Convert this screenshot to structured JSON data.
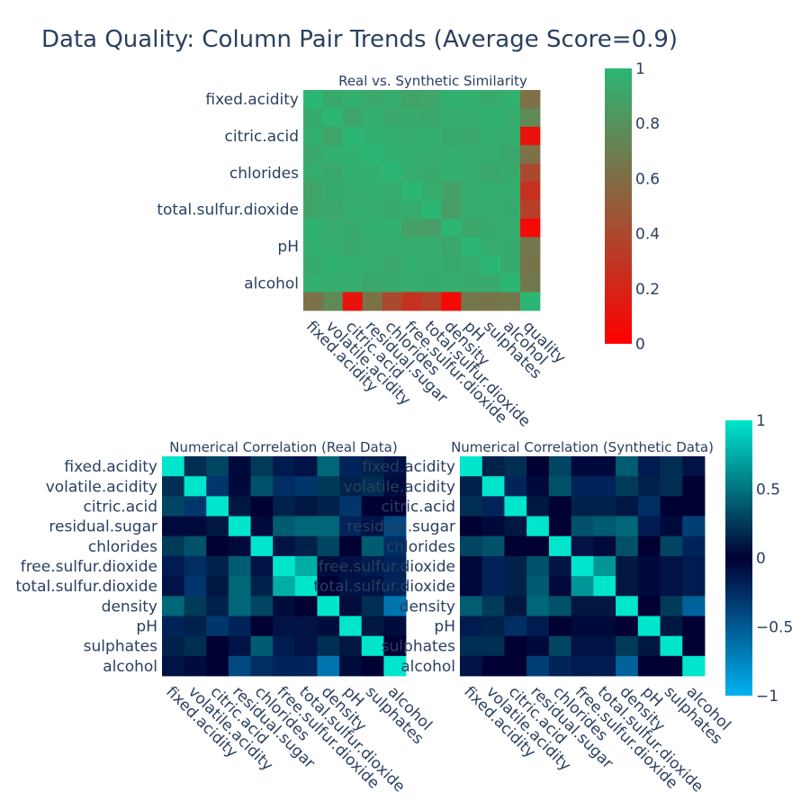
{
  "figure": {
    "title": "Data Quality: Column Pair Trends (Average Score=0.9)"
  },
  "chart_data": [
    {
      "type": "heatmap",
      "title": "Real vs. Synthetic Similarity",
      "colorscale": [
        "#ff0000",
        "#2bb673"
      ],
      "zlim": [
        0,
        1
      ],
      "colorbar_ticks": [
        "0",
        "0.2",
        "0.4",
        "0.6",
        "0.8",
        "1"
      ],
      "x": [
        "fixed.acidity",
        "volatile.acidity",
        "citric.acid",
        "residual.sugar",
        "chlorides",
        "free.sulfur.dioxide",
        "total.sulfur.dioxide",
        "density",
        "pH",
        "sulphates",
        "alcohol",
        "quality"
      ],
      "y": [
        "fixed.acidity",
        "volatile.acidity",
        "citric.acid",
        "residual.sugar",
        "chlorides",
        "free.sulfur.dioxide",
        "total.sulfur.dioxide",
        "density",
        "pH",
        "sulphates",
        "alcohol",
        "quality"
      ],
      "y_tick_labels": [
        "fixed.acidity",
        "citric.acid",
        "chlorides",
        "total.sulfur.dioxide",
        "pH",
        "alcohol"
      ],
      "z": [
        [
          1,
          0.94,
          0.96,
          0.93,
          0.95,
          0.9,
          0.91,
          0.97,
          0.96,
          0.94,
          0.96,
          0.62
        ],
        [
          0.94,
          1,
          0.9,
          0.96,
          0.93,
          0.94,
          0.92,
          0.95,
          0.95,
          0.97,
          0.95,
          0.75
        ],
        [
          0.96,
          0.9,
          1,
          0.97,
          0.96,
          0.95,
          0.96,
          0.94,
          0.93,
          0.96,
          0.95,
          0.1
        ],
        [
          0.93,
          0.96,
          0.97,
          1,
          0.97,
          0.96,
          0.95,
          0.96,
          0.95,
          0.95,
          0.92,
          0.62
        ],
        [
          0.95,
          0.93,
          0.96,
          0.97,
          1,
          0.95,
          0.94,
          0.96,
          0.95,
          0.92,
          0.94,
          0.4
        ],
        [
          0.9,
          0.94,
          0.95,
          0.96,
          0.95,
          1,
          0.95,
          0.88,
          0.95,
          0.96,
          0.95,
          0.27
        ],
        [
          0.91,
          0.92,
          0.96,
          0.95,
          0.94,
          0.95,
          1,
          0.87,
          0.95,
          0.95,
          0.94,
          0.35
        ],
        [
          0.97,
          0.95,
          0.94,
          0.96,
          0.96,
          0.88,
          0.87,
          1,
          0.92,
          0.94,
          0.95,
          0.05
        ],
        [
          0.96,
          0.95,
          0.93,
          0.95,
          0.95,
          0.95,
          0.95,
          0.92,
          1,
          0.95,
          0.94,
          0.65
        ],
        [
          0.94,
          0.97,
          0.96,
          0.95,
          0.92,
          0.96,
          0.95,
          0.94,
          0.95,
          1,
          0.94,
          0.64
        ],
        [
          0.96,
          0.95,
          0.95,
          0.92,
          0.94,
          0.95,
          0.94,
          0.95,
          0.94,
          0.94,
          1,
          0.66
        ],
        [
          0.62,
          0.75,
          0.1,
          0.62,
          0.4,
          0.27,
          0.35,
          0.05,
          0.65,
          0.64,
          0.66,
          1
        ]
      ]
    },
    {
      "type": "heatmap",
      "title": "Numerical Correlation (Real Data)",
      "colorscale": [
        "#00b3f0",
        "#000033",
        "#00e6cc"
      ],
      "zlim": [
        -1,
        1
      ],
      "x": [
        "fixed.acidity",
        "volatile.acidity",
        "citric.acid",
        "residual.sugar",
        "chlorides",
        "free.sulfur.dioxide",
        "total.sulfur.dioxide",
        "density",
        "pH",
        "sulphates",
        "alcohol"
      ],
      "y": [
        "fixed.acidity",
        "volatile.acidity",
        "citric.acid",
        "residual.sugar",
        "chlorides",
        "free.sulfur.dioxide",
        "total.sulfur.dioxide",
        "density",
        "pH",
        "sulphates",
        "alcohol"
      ],
      "z": [
        [
          1,
          0.2,
          0.3,
          -0.05,
          0.25,
          -0.15,
          -0.1,
          0.45,
          -0.2,
          0.15,
          -0.1
        ],
        [
          0.2,
          1,
          -0.3,
          -0.05,
          0.35,
          -0.25,
          -0.3,
          0.25,
          0.15,
          0.2,
          0.05
        ],
        [
          0.3,
          -0.3,
          1,
          0.1,
          0.0,
          0.15,
          0.1,
          0.15,
          -0.3,
          0.0,
          0.0
        ],
        [
          -0.05,
          -0.05,
          0.1,
          1,
          -0.05,
          0.4,
          0.45,
          0.45,
          -0.2,
          -0.1,
          -0.4
        ],
        [
          0.25,
          0.35,
          0.0,
          -0.05,
          1,
          -0.1,
          0.15,
          0.3,
          0.0,
          0.4,
          -0.25
        ],
        [
          -0.15,
          -0.25,
          0.15,
          0.4,
          -0.1,
          1,
          0.75,
          0.05,
          -0.1,
          -0.15,
          -0.2
        ],
        [
          -0.1,
          -0.3,
          0.1,
          0.45,
          0.15,
          0.75,
          1,
          0.0,
          -0.1,
          -0.1,
          -0.2
        ],
        [
          0.45,
          0.25,
          0.15,
          0.45,
          0.3,
          0.05,
          0.0,
          1,
          0.05,
          0.2,
          -0.65
        ],
        [
          -0.2,
          0.15,
          -0.3,
          -0.2,
          0.0,
          -0.1,
          -0.1,
          0.05,
          1,
          0.1,
          0.05
        ],
        [
          0.15,
          0.2,
          0.0,
          -0.1,
          0.4,
          -0.15,
          -0.1,
          0.2,
          0.1,
          1,
          0.0
        ],
        [
          -0.1,
          0.05,
          0.0,
          -0.4,
          -0.25,
          -0.2,
          -0.2,
          -0.65,
          0.05,
          0.0,
          1
        ]
      ]
    },
    {
      "type": "heatmap",
      "title": "Numerical Correlation (Synthetic Data)",
      "colorscale": [
        "#00b3f0",
        "#000033",
        "#00e6cc"
      ],
      "zlim": [
        -1,
        1
      ],
      "colorbar_ticks": [
        "−1",
        "−0.5",
        "0",
        "0.5",
        "1"
      ],
      "x": [
        "fixed.acidity",
        "volatile.acidity",
        "citric.acid",
        "residual.sugar",
        "chlorides",
        "free.sulfur.dioxide",
        "total.sulfur.dioxide",
        "density",
        "pH",
        "sulphates",
        "alcohol"
      ],
      "y": [
        "fixed.acidity",
        "volatile.acidity",
        "citric.acid",
        "residual.sugar",
        "chlorides",
        "free.sulfur.dioxide",
        "total.sulfur.dioxide",
        "density",
        "pH",
        "sulphates",
        "alcohol"
      ],
      "z": [
        [
          1,
          0.15,
          0.2,
          0.0,
          0.3,
          -0.05,
          -0.05,
          0.4,
          -0.15,
          0.2,
          -0.1
        ],
        [
          0.15,
          1,
          -0.2,
          -0.05,
          0.35,
          -0.2,
          -0.2,
          0.25,
          0.15,
          0.2,
          0.0
        ],
        [
          0.2,
          -0.2,
          1,
          0.1,
          0.0,
          0.15,
          0.15,
          0.1,
          -0.25,
          0.0,
          0.0
        ],
        [
          0.0,
          -0.05,
          0.1,
          1,
          0.0,
          0.35,
          0.4,
          0.45,
          -0.15,
          -0.05,
          -0.35
        ],
        [
          0.3,
          0.35,
          0.0,
          0.0,
          1,
          -0.1,
          -0.05,
          0.35,
          0.0,
          0.3,
          -0.2
        ],
        [
          -0.05,
          -0.2,
          0.15,
          0.35,
          -0.1,
          1,
          0.65,
          0.1,
          -0.05,
          -0.1,
          -0.15
        ],
        [
          -0.05,
          -0.2,
          0.15,
          0.4,
          -0.05,
          0.65,
          1,
          0.1,
          -0.05,
          -0.1,
          -0.15
        ],
        [
          0.4,
          0.25,
          0.1,
          0.45,
          0.35,
          0.1,
          0.1,
          1,
          0.0,
          0.25,
          -0.55
        ],
        [
          -0.15,
          0.15,
          -0.25,
          -0.15,
          0.0,
          -0.05,
          -0.05,
          0.0,
          1,
          0.1,
          0.0
        ],
        [
          0.2,
          0.2,
          0.0,
          -0.05,
          0.3,
          -0.1,
          -0.1,
          0.25,
          0.1,
          1,
          0.0
        ],
        [
          -0.1,
          0.0,
          0.0,
          -0.35,
          -0.2,
          -0.15,
          -0.15,
          -0.55,
          0.0,
          0.0,
          1
        ]
      ]
    }
  ]
}
